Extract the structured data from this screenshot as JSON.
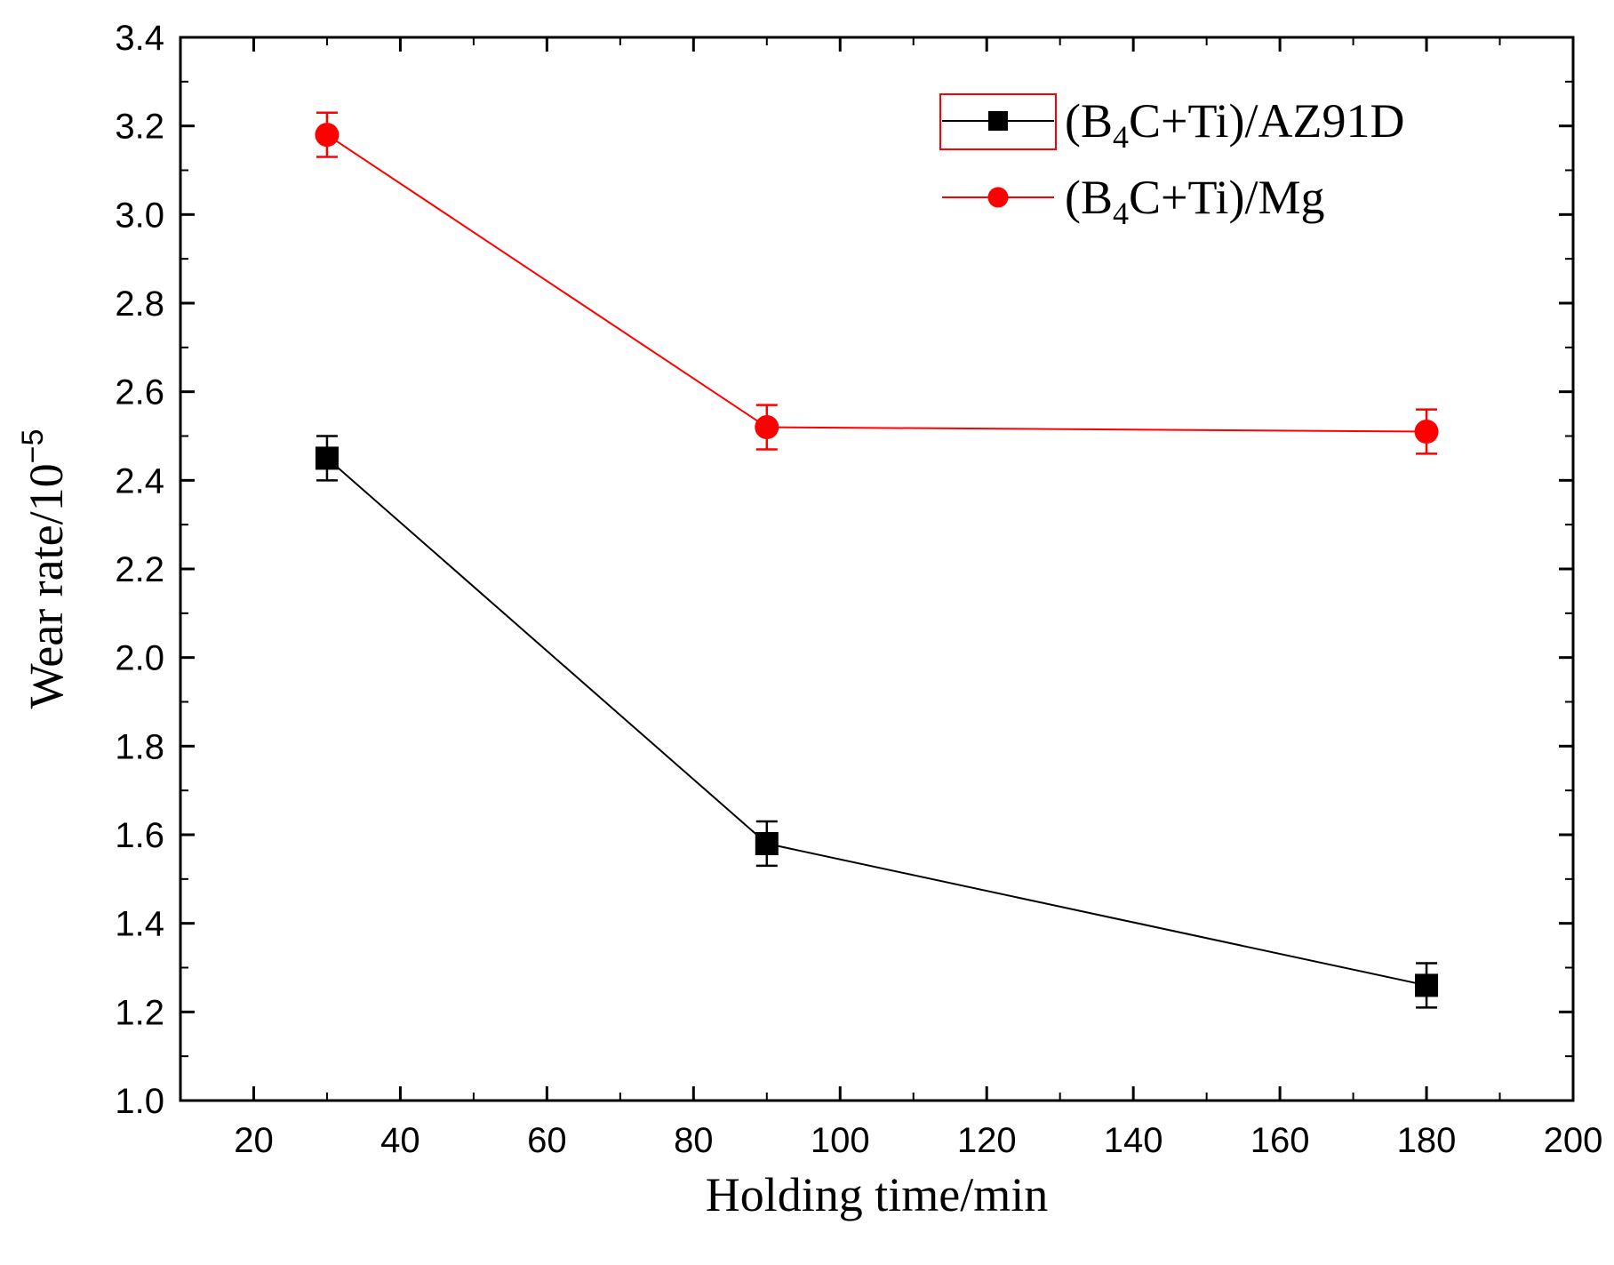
{
  "chart_data": {
    "type": "line",
    "title": "",
    "xlabel": "Holding time/min",
    "ylabel": {
      "main": "Wear rate/10",
      "exponent": "−5"
    },
    "xlim": [
      10,
      200
    ],
    "ylim": [
      1.0,
      3.4
    ],
    "xticks": [
      20,
      40,
      60,
      80,
      100,
      120,
      140,
      160,
      180,
      200
    ],
    "yticks": [
      1.0,
      1.2,
      1.4,
      1.6,
      1.8,
      2.0,
      2.2,
      2.4,
      2.6,
      2.8,
      3.0,
      3.2,
      3.4
    ],
    "xtick_labels": [
      "20",
      "40",
      "60",
      "80",
      "100",
      "120",
      "140",
      "160",
      "180",
      "200"
    ],
    "ytick_labels": [
      "1.0",
      "1.2",
      "1.4",
      "1.6",
      "1.8",
      "2.0",
      "2.2",
      "2.4",
      "2.6",
      "2.8",
      "3.0",
      "3.2",
      "3.4"
    ],
    "grid": false,
    "legend_position": "top-right",
    "series": [
      {
        "name": "(B4C+Ti)/AZ91D",
        "label_parts": [
          "(B",
          "4",
          "C+Ti)/AZ91D"
        ],
        "color": "#000000",
        "marker": "square",
        "x": [
          30,
          90,
          180
        ],
        "y": [
          2.45,
          1.58,
          1.26
        ],
        "error": [
          0.05,
          0.05,
          0.05
        ]
      },
      {
        "name": "(B4C+Ti)/Mg",
        "label_parts": [
          "(B",
          "4",
          "C+Ti)/Mg"
        ],
        "color": "#ff0000",
        "marker": "circle",
        "x": [
          30,
          90,
          180
        ],
        "y": [
          3.18,
          2.52,
          2.51
        ],
        "error": [
          0.05,
          0.05,
          0.05
        ]
      }
    ]
  }
}
